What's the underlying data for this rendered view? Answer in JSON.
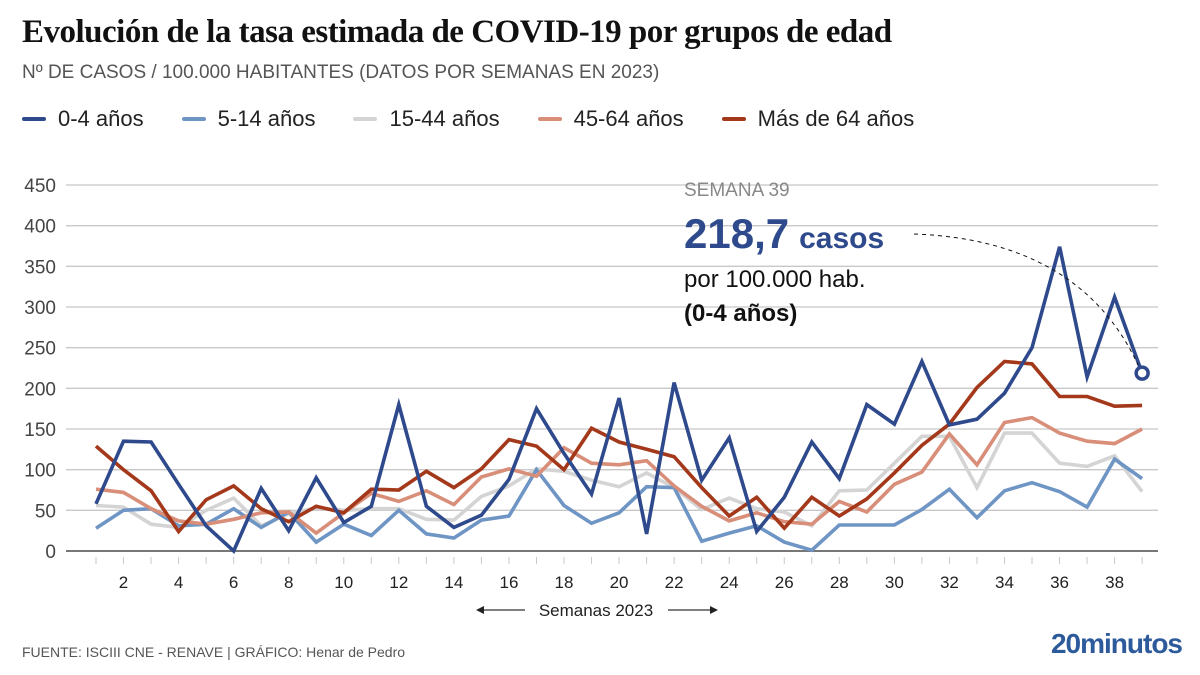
{
  "title": "Evolución de la tasa estimada de COVID-19 por grupos de edad",
  "subtitle": "Nº DE CASOS / 100.000 HABITANTES (DATOS POR SEMANAS EN 2023)",
  "annotation": {
    "week_label": "SEMANA 39",
    "value": "218,7",
    "unit": "casos",
    "line2": "por 100.000 hab.",
    "line3": "(0-4 años)",
    "series": "0-4 años",
    "week": 39,
    "color": "#2e4a8c"
  },
  "xaxis_caption": "Semanas 2023",
  "footer": {
    "source": "FUENTE: ISCIII CNE - RENAVE  |  GRÁFICO: Henar de Pedro",
    "logo": "20minutos"
  },
  "chart_data": {
    "type": "line",
    "title": "Evolución de la tasa estimada de COVID-19 por grupos de edad",
    "subtitle": "Nº DE CASOS / 100.000 HABITANTES (DATOS POR SEMANAS EN 2023)",
    "xlabel": "Semanas 2023",
    "ylabel": "",
    "ylim": [
      0,
      450
    ],
    "yticks": [
      0,
      50,
      100,
      150,
      200,
      250,
      300,
      350,
      400,
      450
    ],
    "xticks": [
      2,
      4,
      6,
      8,
      10,
      12,
      14,
      16,
      18,
      20,
      22,
      24,
      26,
      28,
      30,
      32,
      34,
      36,
      38
    ],
    "grid": true,
    "legend": "top",
    "x": [
      1,
      2,
      3,
      4,
      5,
      6,
      7,
      8,
      9,
      10,
      11,
      12,
      13,
      14,
      15,
      16,
      17,
      18,
      19,
      20,
      21,
      22,
      23,
      24,
      25,
      26,
      27,
      28,
      29,
      30,
      31,
      32,
      33,
      34,
      35,
      36,
      37,
      38,
      39
    ],
    "series": [
      {
        "name": "0-4 años",
        "color": "#2e4a8c",
        "values": [
          58,
          135,
          134,
          82,
          31,
          0,
          77,
          25,
          90,
          35,
          55,
          180,
          55,
          29,
          44,
          88,
          175,
          120,
          70,
          188,
          21,
          207,
          87,
          139,
          24,
          66,
          134,
          89,
          180,
          156,
          233,
          155,
          162,
          194,
          250,
          374,
          214,
          312,
          218.7
        ]
      },
      {
        "name": "5-14 años",
        "color": "#6f95c5",
        "values": [
          28,
          50,
          52,
          31,
          33,
          52,
          29,
          48,
          11,
          33,
          19,
          50,
          21,
          16,
          38,
          43,
          100,
          56,
          34,
          47,
          79,
          78,
          12,
          22,
          31,
          11,
          1,
          32,
          32,
          32,
          51,
          76,
          41,
          74,
          84,
          73,
          54,
          113,
          89
        ]
      },
      {
        "name": "15-44 años",
        "color": "#d4d4d4",
        "values": [
          56,
          54,
          33,
          29,
          50,
          65,
          31,
          46,
          53,
          50,
          52,
          52,
          39,
          38,
          67,
          80,
          101,
          98,
          87,
          79,
          96,
          78,
          51,
          65,
          52,
          48,
          31,
          74,
          75,
          108,
          141,
          141,
          78,
          145,
          145,
          108,
          104,
          117,
          73
        ]
      },
      {
        "name": "45-64 años",
        "color": "#d88e78",
        "values": [
          76,
          72,
          52,
          37,
          33,
          39,
          47,
          48,
          22,
          47,
          71,
          61,
          74,
          57,
          91,
          101,
          92,
          127,
          108,
          106,
          111,
          80,
          55,
          37,
          47,
          36,
          33,
          61,
          48,
          82,
          97,
          144,
          106,
          158,
          164,
          145,
          135,
          132,
          150
        ]
      },
      {
        "name": "Más de 64 años",
        "color": "#a4381a",
        "values": [
          129,
          100,
          74,
          24,
          63,
          80,
          52,
          36,
          55,
          47,
          76,
          75,
          98,
          78,
          101,
          137,
          129,
          100,
          151,
          134,
          125,
          116,
          78,
          43,
          66,
          28,
          66,
          43,
          64,
          96,
          130,
          156,
          201,
          233,
          230,
          190,
          190,
          178,
          179
        ]
      }
    ]
  }
}
